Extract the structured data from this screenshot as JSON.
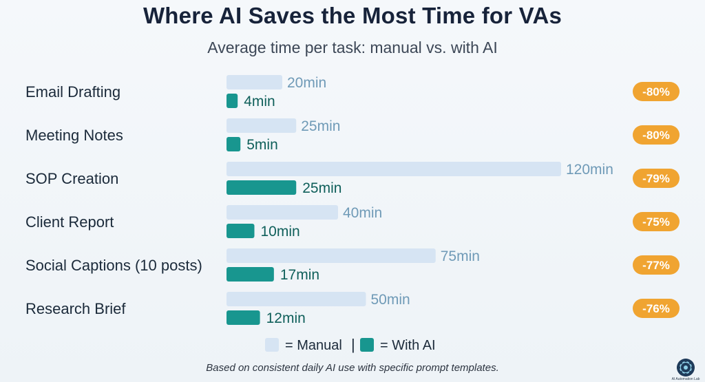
{
  "title": "Where AI Saves the Most Time for VAs",
  "subtitle": "Average time per task: manual vs. with AI",
  "footnote": "Based on consistent daily AI use with specific prompt templates.",
  "logo_text": "AI Automation Lab",
  "colors": {
    "manual": "#d6e4f3",
    "ai": "#18968f",
    "manual_label": "#6f9ab7",
    "ai_label": "#0f5f5a",
    "badge": "#f0a431",
    "category_text": "#1b2a3a"
  },
  "chart_data": {
    "type": "bar",
    "orientation": "horizontal",
    "categories": [
      "Email Drafting",
      "Meeting Notes",
      "SOP Creation",
      "Client Report",
      "Social Captions (10 posts)",
      "Research Brief"
    ],
    "series": [
      {
        "name": "Manual",
        "values": [
          20,
          25,
          120,
          40,
          75,
          50
        ],
        "labels": [
          "20min",
          "25min",
          "120min",
          "40min",
          "75min",
          "50min"
        ]
      },
      {
        "name": "With AI",
        "values": [
          4,
          5,
          25,
          10,
          17,
          12
        ],
        "labels": [
          "4min",
          "5min",
          "25min",
          "10min",
          "17min",
          "12min"
        ]
      }
    ],
    "savings": [
      "-80%",
      "-80%",
      "-79%",
      "-75%",
      "-77%",
      "-76%"
    ],
    "legend": {
      "manual": "= Manual",
      "separator": "|",
      "ai": "= With AI"
    },
    "xlim": [
      0,
      120
    ],
    "grid": false,
    "legend_position": "bottom"
  }
}
